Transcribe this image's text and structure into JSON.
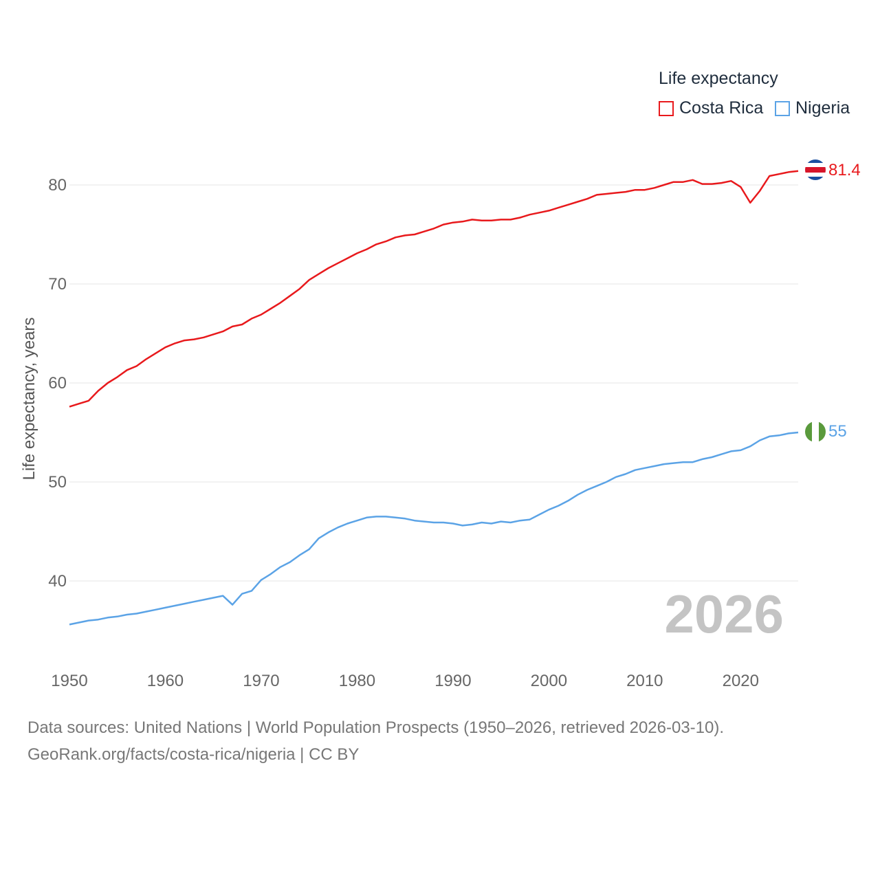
{
  "chart_data": {
    "type": "line",
    "legend_title": "Life expectancy",
    "ylabel": "Life expectancy, years",
    "xlabel": "",
    "xlim": [
      1950,
      2026
    ],
    "ylim": [
      33,
      85
    ],
    "x_ticks": [
      1950,
      1960,
      1970,
      1980,
      1990,
      2000,
      2010,
      2020
    ],
    "y_ticks": [
      40,
      50,
      60,
      70,
      80
    ],
    "year_watermark": "2026",
    "series": [
      {
        "name": "Costa Rica",
        "color": "#e8191c",
        "end_label": "81.4",
        "flag": "costa-rica-flag-icon",
        "x": [
          1950,
          1951,
          1952,
          1953,
          1954,
          1955,
          1956,
          1957,
          1958,
          1959,
          1960,
          1961,
          1962,
          1963,
          1964,
          1965,
          1966,
          1967,
          1968,
          1969,
          1970,
          1971,
          1972,
          1973,
          1974,
          1975,
          1976,
          1977,
          1978,
          1979,
          1980,
          1981,
          1982,
          1983,
          1984,
          1985,
          1986,
          1987,
          1988,
          1989,
          1990,
          1991,
          1992,
          1993,
          1994,
          1995,
          1996,
          1997,
          1998,
          1999,
          2000,
          2001,
          2002,
          2003,
          2004,
          2005,
          2006,
          2007,
          2008,
          2009,
          2010,
          2011,
          2012,
          2013,
          2014,
          2015,
          2016,
          2017,
          2018,
          2019,
          2020,
          2021,
          2022,
          2023,
          2024,
          2025,
          2026
        ],
        "values": [
          57.6,
          57.9,
          58.2,
          59.2,
          60.0,
          60.6,
          61.3,
          61.7,
          62.4,
          63.0,
          63.6,
          64.0,
          64.3,
          64.4,
          64.6,
          64.9,
          65.2,
          65.7,
          65.9,
          66.5,
          66.9,
          67.5,
          68.1,
          68.8,
          69.5,
          70.4,
          71.0,
          71.6,
          72.1,
          72.6,
          73.1,
          73.5,
          74.0,
          74.3,
          74.7,
          74.9,
          75.0,
          75.3,
          75.6,
          76.0,
          76.2,
          76.3,
          76.5,
          76.4,
          76.4,
          76.5,
          76.5,
          76.7,
          77.0,
          77.2,
          77.4,
          77.7,
          78.0,
          78.3,
          78.6,
          79.0,
          79.1,
          79.2,
          79.3,
          79.5,
          79.5,
          79.7,
          80.0,
          80.3,
          80.3,
          80.5,
          80.1,
          80.1,
          80.2,
          80.4,
          79.8,
          78.2,
          79.4,
          80.9,
          81.1,
          81.3,
          81.4
        ]
      },
      {
        "name": "Nigeria",
        "color": "#5ba3e6",
        "end_label": "55",
        "flag": "nigeria-flag-icon",
        "x": [
          1950,
          1951,
          1952,
          1953,
          1954,
          1955,
          1956,
          1957,
          1958,
          1959,
          1960,
          1961,
          1962,
          1963,
          1964,
          1965,
          1966,
          1967,
          1968,
          1969,
          1970,
          1971,
          1972,
          1973,
          1974,
          1975,
          1976,
          1977,
          1978,
          1979,
          1980,
          1981,
          1982,
          1983,
          1984,
          1985,
          1986,
          1987,
          1988,
          1989,
          1990,
          1991,
          1992,
          1993,
          1994,
          1995,
          1996,
          1997,
          1998,
          1999,
          2000,
          2001,
          2002,
          2003,
          2004,
          2005,
          2006,
          2007,
          2008,
          2009,
          2010,
          2011,
          2012,
          2013,
          2014,
          2015,
          2016,
          2017,
          2018,
          2019,
          2020,
          2021,
          2022,
          2023,
          2024,
          2025,
          2026
        ],
        "values": [
          35.6,
          35.8,
          36.0,
          36.1,
          36.3,
          36.4,
          36.6,
          36.7,
          36.9,
          37.1,
          37.3,
          37.5,
          37.7,
          37.9,
          38.1,
          38.3,
          38.5,
          37.6,
          38.7,
          39.0,
          40.1,
          40.7,
          41.4,
          41.9,
          42.6,
          43.2,
          44.3,
          44.9,
          45.4,
          45.8,
          46.1,
          46.4,
          46.5,
          46.5,
          46.4,
          46.3,
          46.1,
          46.0,
          45.9,
          45.9,
          45.8,
          45.6,
          45.7,
          45.9,
          45.8,
          46.0,
          45.9,
          46.1,
          46.2,
          46.7,
          47.2,
          47.6,
          48.1,
          48.7,
          49.2,
          49.6,
          50.0,
          50.5,
          50.8,
          51.2,
          51.4,
          51.6,
          51.8,
          51.9,
          52.0,
          52.0,
          52.3,
          52.5,
          52.8,
          53.1,
          53.2,
          53.6,
          54.2,
          54.6,
          54.7,
          54.9,
          55.0
        ]
      }
    ]
  },
  "footer": {
    "sources": "Data sources: United Nations | World Population Prospects (1950–2026, retrieved 2026-03-10).",
    "credit": "GeoRank.org/facts/costa-rica/nigeria | CC BY"
  }
}
